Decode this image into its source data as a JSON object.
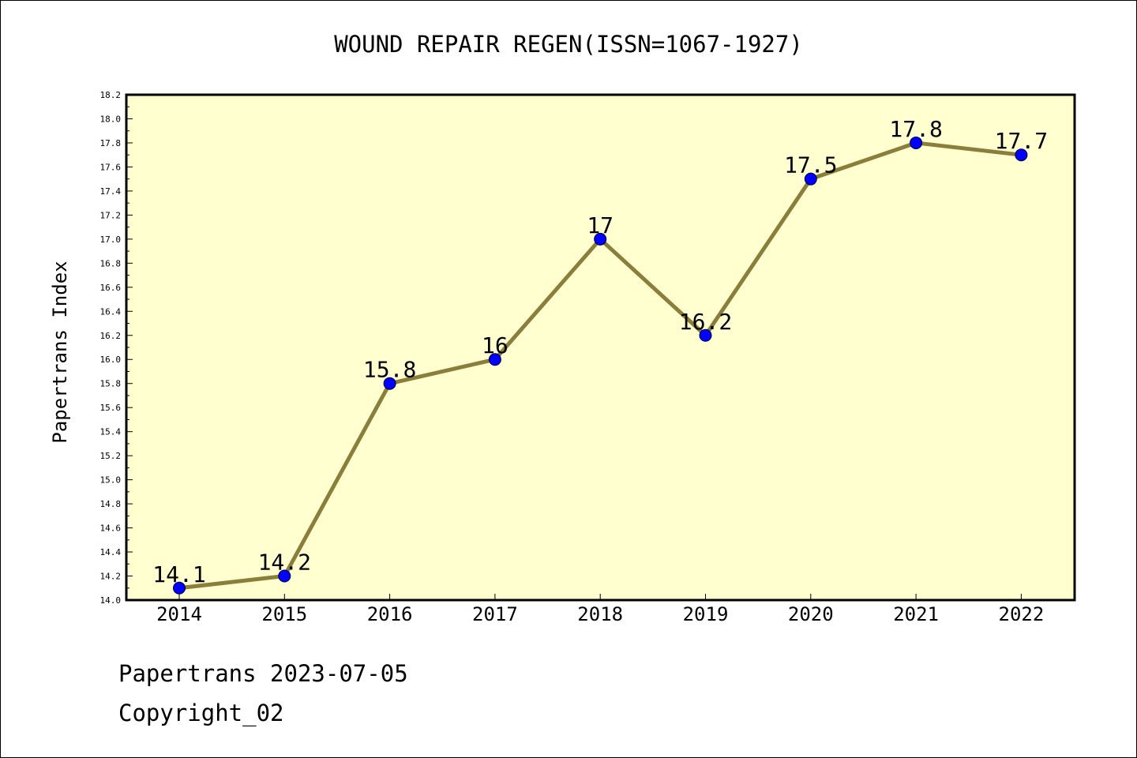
{
  "chart_data": {
    "type": "line",
    "title": "WOUND REPAIR REGEN(ISSN=1067-1927)",
    "xlabel": "",
    "ylabel": "Papertrans Index",
    "categories": [
      "2014",
      "2015",
      "2016",
      "2017",
      "2018",
      "2019",
      "2020",
      "2021",
      "2022"
    ],
    "series": [
      {
        "values": [
          14.1,
          14.2,
          15.8,
          16.0,
          17.0,
          16.2,
          17.5,
          17.8,
          17.7
        ],
        "data_labels": [
          "14.1",
          "14.2",
          "15.8",
          "16",
          "17",
          "16.2",
          "17.5",
          "17.8",
          "17.7"
        ]
      }
    ],
    "ylim": [
      14.0,
      18.2
    ],
    "yticks": [
      "14.0",
      "14.2",
      "14.4",
      "14.6",
      "14.8",
      "15.0",
      "15.2",
      "15.4",
      "15.6",
      "15.8",
      "16.0",
      "16.2",
      "16.4",
      "16.6",
      "16.8",
      "17.0",
      "17.2",
      "17.4",
      "17.6",
      "17.8",
      "18.0",
      "18.2"
    ],
    "grid": false,
    "colors": {
      "plot_background": "#ffffd0",
      "line": "#8b7d3a",
      "marker": "#0000ff"
    }
  },
  "footer": {
    "line1": "Papertrans 2023-07-05",
    "line2": "Copyright_02"
  }
}
